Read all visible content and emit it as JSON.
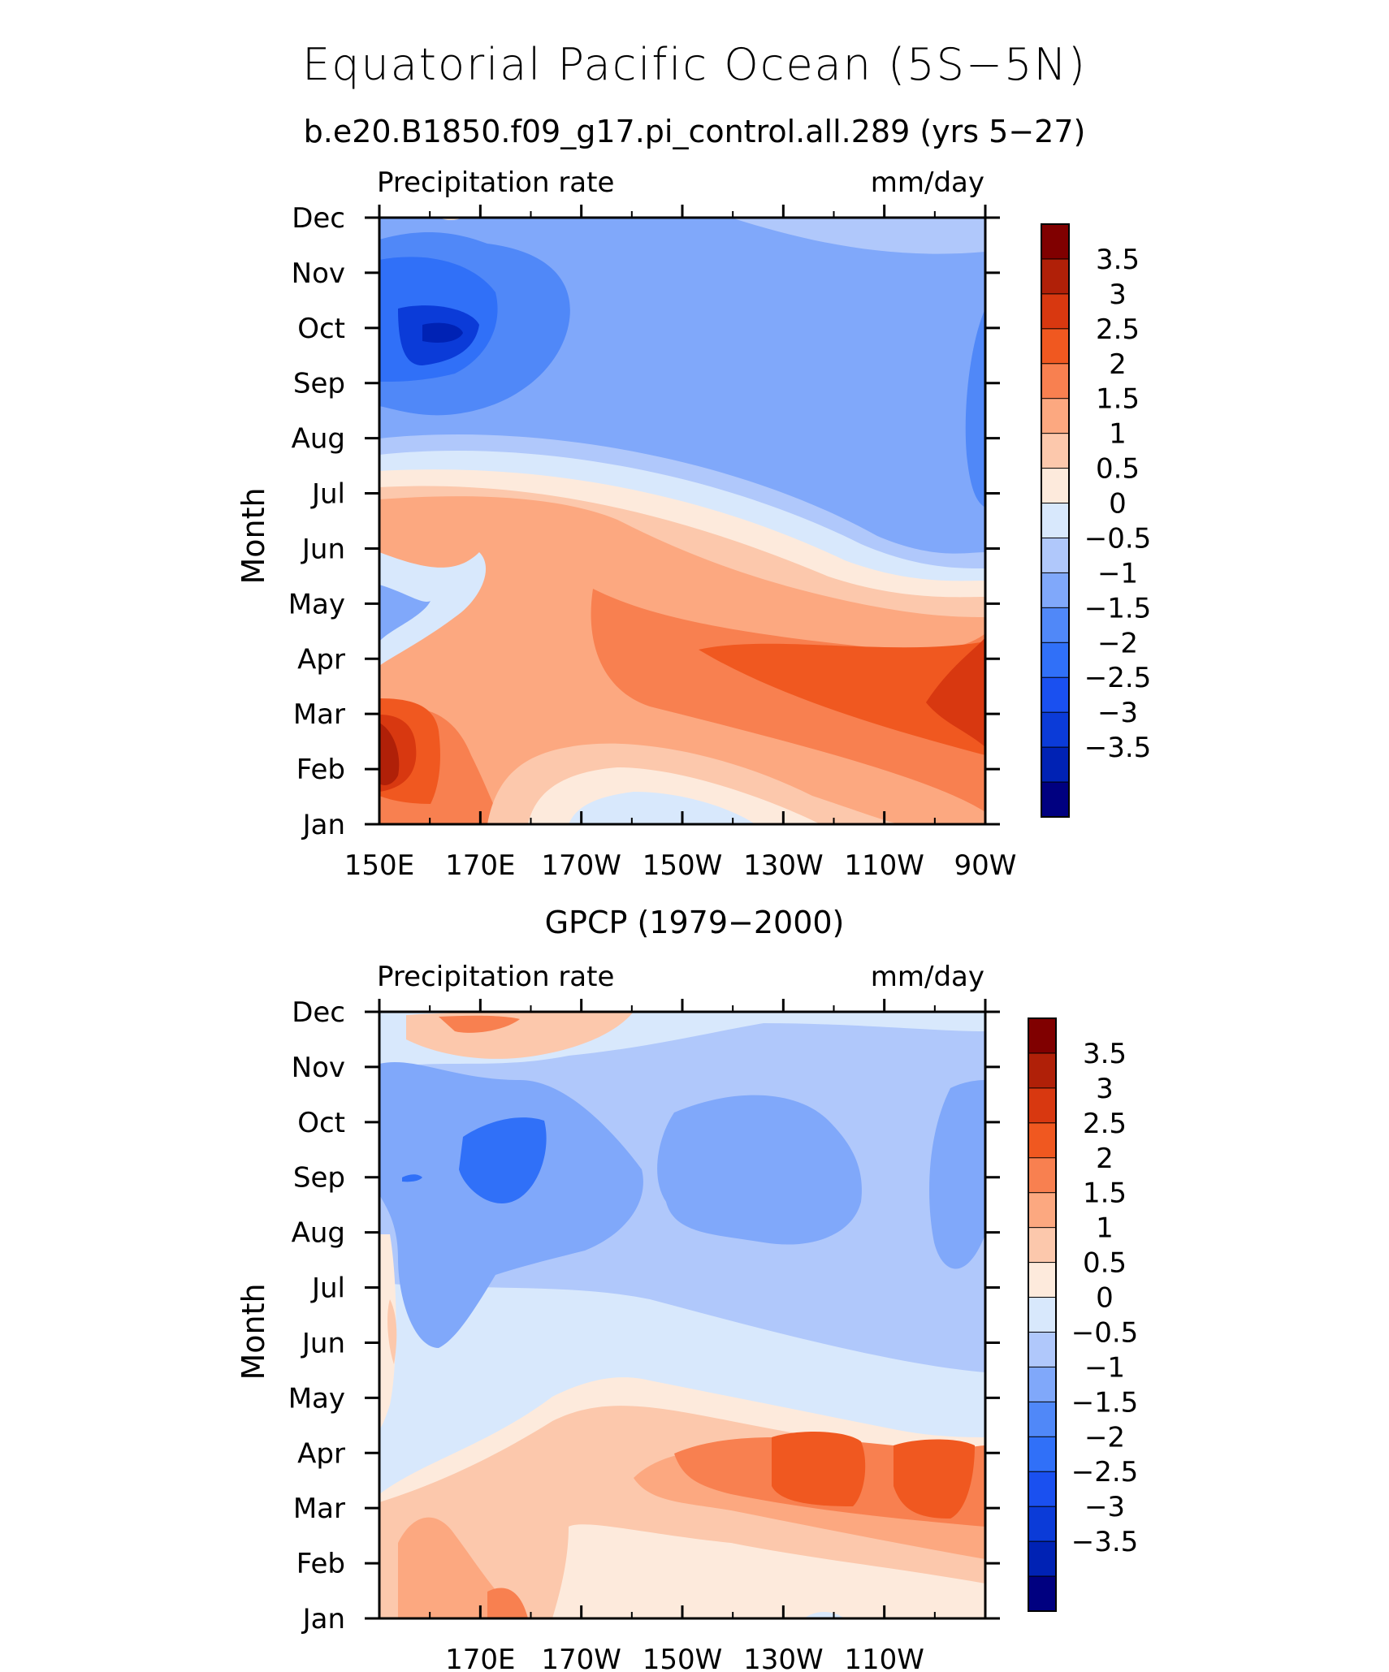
{
  "title": "Equatorial Pacific Ocean (5S−5N)",
  "colors": [
    "#000080",
    "#0022b4",
    "#0b3bd8",
    "#1a50f0",
    "#3070f8",
    "#5088f8",
    "#80a8fa",
    "#b0c8fb",
    "#d8e8fc",
    "#fdeadc",
    "#fcc8ac",
    "#fca880",
    "#f88050",
    "#f05820",
    "#d83810",
    "#b02008",
    "#800000"
  ],
  "chart_data": [
    {
      "type": "contour",
      "panel_title": "b.e20.B1850.f09_g17.pi_control.all.289 (yrs 5−27)",
      "left_label": "Precipitation rate",
      "right_label": "mm/day",
      "ylabel": "Month",
      "x_ticks": [
        "150E",
        "170E",
        "170W",
        "150W",
        "130W",
        "110W",
        "90W"
      ],
      "y_ticks": [
        "Jan",
        "Feb",
        "Mar",
        "Apr",
        "May",
        "Jun",
        "Jul",
        "Aug",
        "Sep",
        "Oct",
        "Nov",
        "Dec"
      ],
      "x_range": [
        "150E",
        "90W"
      ],
      "colorbar_labels": [
        "3.5",
        "3",
        "2.5",
        "2",
        "1.5",
        "1",
        "0.5",
        "0",
        "−0.5",
        "−1",
        "−1.5",
        "−2",
        "−2.5",
        "−3",
        "−3.5"
      ],
      "units": "mm/day"
    },
    {
      "type": "contour",
      "panel_title": "GPCP (1979−2000)",
      "left_label": "Precipitation rate",
      "right_label": "mm/day",
      "ylabel": "Month",
      "x_ticks": [
        "",
        "170E",
        "170W",
        "150W",
        "130W",
        "110W",
        ""
      ],
      "y_ticks": [
        "Jan",
        "Feb",
        "Mar",
        "Apr",
        "May",
        "Jun",
        "Jul",
        "Aug",
        "Sep",
        "Oct",
        "Nov",
        "Dec"
      ],
      "colorbar_labels": [
        "3.5",
        "3",
        "2.5",
        "2",
        "1.5",
        "1",
        "0.5",
        "0",
        "−0.5",
        "−1",
        "−1.5",
        "−2",
        "−2.5",
        "−3",
        "−3.5"
      ],
      "units": "mm/day"
    }
  ]
}
